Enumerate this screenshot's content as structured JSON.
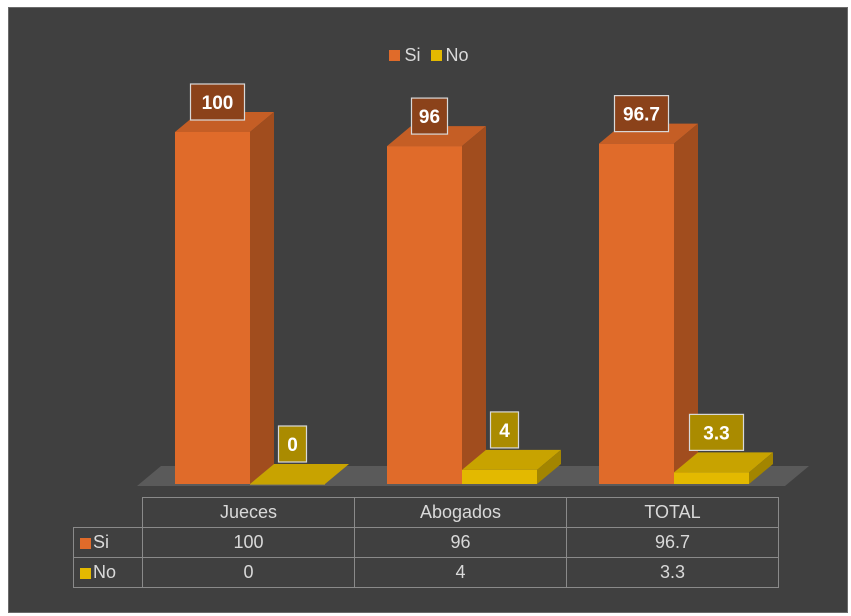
{
  "chart_data": {
    "type": "bar",
    "categories": [
      "Jueces",
      "Abogados",
      "TOTAL"
    ],
    "series": [
      {
        "name": "Si",
        "values": [
          100,
          96,
          96.7
        ],
        "labels": [
          "100",
          "96",
          "96.7"
        ]
      },
      {
        "name": "No",
        "values": [
          0,
          4,
          3.3
        ],
        "labels": [
          "0",
          "4",
          "3.3"
        ]
      }
    ],
    "ylim": [
      0,
      100
    ],
    "grid": false,
    "legend_position": "top",
    "data_table": true
  },
  "colors": {
    "si": "#e06b2a",
    "no": "#e3b900",
    "background": "#404040"
  }
}
